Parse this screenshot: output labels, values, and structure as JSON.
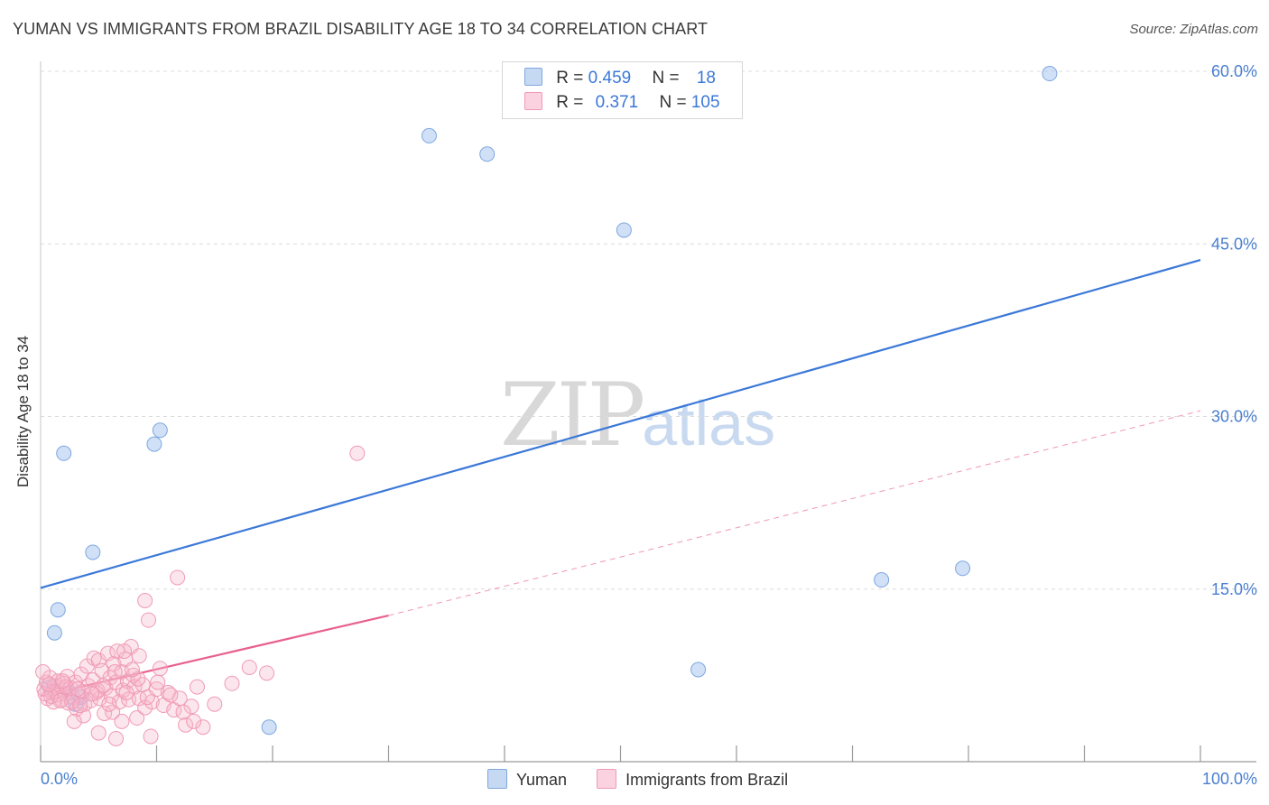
{
  "header": {
    "title": "YUMAN VS IMMIGRANTS FROM BRAZIL DISABILITY AGE 18 TO 34 CORRELATION CHART",
    "source": "Source: ZipAtlas.com"
  },
  "watermark": {
    "zip": "ZIP",
    "atlas": "atlas"
  },
  "legend": {
    "rows": [
      {
        "r_label": "R = ",
        "r_value": "0.459",
        "n_label": "N = ",
        "n_value": "18",
        "color": "#a9c6ef"
      },
      {
        "r_label": "R = ",
        "r_value": "0.371",
        "n_label": "N = ",
        "n_value": "105",
        "color": "#f6b7cb"
      }
    ]
  },
  "bottom_legend": {
    "yuman": "Yuman",
    "brazil": "Immigrants from Brazil"
  },
  "chart_data": {
    "type": "scatter",
    "title": "YUMAN VS IMMIGRANTS FROM BRAZIL DISABILITY AGE 18 TO 34 CORRELATION CHART",
    "xlabel": "",
    "ylabel": "Disability Age 18 to 34",
    "xlim": [
      0,
      100
    ],
    "ylim": [
      0,
      60
    ],
    "x_tick_labels": [
      "0.0%",
      "100.0%"
    ],
    "y_ticks": [
      15,
      30,
      45,
      60
    ],
    "y_tick_labels": [
      "15.0%",
      "30.0%",
      "45.0%",
      "60.0%"
    ],
    "grid": true,
    "series": [
      {
        "name": "Yuman",
        "color": "#3b78d8",
        "fill": "#a9c6ef",
        "points": [
          [
            2.0,
            26.8
          ],
          [
            1.2,
            11.2
          ],
          [
            1.5,
            13.2
          ],
          [
            4.5,
            18.2
          ],
          [
            9.8,
            27.6
          ],
          [
            10.3,
            28.8
          ],
          [
            33.5,
            54.4
          ],
          [
            38.5,
            52.8
          ],
          [
            50.3,
            46.2
          ],
          [
            87.0,
            59.8
          ],
          [
            72.5,
            15.8
          ],
          [
            79.5,
            16.8
          ],
          [
            56.7,
            8.0
          ],
          [
            19.7,
            3.0
          ],
          [
            3.0,
            5.0
          ],
          [
            3.5,
            5.6
          ],
          [
            2.5,
            6.0
          ],
          [
            0.8,
            6.5
          ]
        ],
        "trend": {
          "x": [
            0,
            100
          ],
          "y": [
            15.1,
            43.6
          ],
          "style": "solid"
        }
      },
      {
        "name": "Immigrants from Brazil",
        "color": "#e8608f",
        "fill": "#f6b7cb",
        "points": [
          [
            0.3,
            6.3
          ],
          [
            0.5,
            6.9
          ],
          [
            0.6,
            5.5
          ],
          [
            0.8,
            7.3
          ],
          [
            1.0,
            6.0
          ],
          [
            1.1,
            5.2
          ],
          [
            1.2,
            6.6
          ],
          [
            1.4,
            5.8
          ],
          [
            1.5,
            7.0
          ],
          [
            1.6,
            6.2
          ],
          [
            1.8,
            5.4
          ],
          [
            2.0,
            6.8
          ],
          [
            2.1,
            5.9
          ],
          [
            2.3,
            7.4
          ],
          [
            2.4,
            5.1
          ],
          [
            2.6,
            6.4
          ],
          [
            2.8,
            5.6
          ],
          [
            3.0,
            6.9
          ],
          [
            3.1,
            4.6
          ],
          [
            3.3,
            5.8
          ],
          [
            3.5,
            7.6
          ],
          [
            3.6,
            6.1
          ],
          [
            3.8,
            5.0
          ],
          [
            4.0,
            8.3
          ],
          [
            4.1,
            6.6
          ],
          [
            4.3,
            5.3
          ],
          [
            4.5,
            7.1
          ],
          [
            4.6,
            9.0
          ],
          [
            4.8,
            6.0
          ],
          [
            5.0,
            8.8
          ],
          [
            5.1,
            5.5
          ],
          [
            5.3,
            7.9
          ],
          [
            5.5,
            4.2
          ],
          [
            5.6,
            6.4
          ],
          [
            5.8,
            9.4
          ],
          [
            6.0,
            7.3
          ],
          [
            6.1,
            5.7
          ],
          [
            6.3,
            8.5
          ],
          [
            6.5,
            6.9
          ],
          [
            6.6,
            9.6
          ],
          [
            6.8,
            5.2
          ],
          [
            7.0,
            7.8
          ],
          [
            7.1,
            6.2
          ],
          [
            7.3,
            8.9
          ],
          [
            7.5,
            7.0
          ],
          [
            7.6,
            5.4
          ],
          [
            7.8,
            10.0
          ],
          [
            8.0,
            7.5
          ],
          [
            8.1,
            6.5
          ],
          [
            8.3,
            3.8
          ],
          [
            8.5,
            5.5
          ],
          [
            8.8,
            6.7
          ],
          [
            9.0,
            4.7
          ],
          [
            9.3,
            12.3
          ],
          [
            9.6,
            5.2
          ],
          [
            10.0,
            6.3
          ],
          [
            10.3,
            8.1
          ],
          [
            10.6,
            4.9
          ],
          [
            11.0,
            6.0
          ],
          [
            11.5,
            4.5
          ],
          [
            12.0,
            5.5
          ],
          [
            12.5,
            3.2
          ],
          [
            13.0,
            4.8
          ],
          [
            13.5,
            6.5
          ],
          [
            14.0,
            3.0
          ],
          [
            15.0,
            5.0
          ],
          [
            16.5,
            6.8
          ],
          [
            18.0,
            8.2
          ],
          [
            19.5,
            7.7
          ],
          [
            27.3,
            26.8
          ],
          [
            9.0,
            14.0
          ],
          [
            11.8,
            16.0
          ],
          [
            5.0,
            2.5
          ],
          [
            6.5,
            2.0
          ],
          [
            9.5,
            2.2
          ],
          [
            7.0,
            3.5
          ],
          [
            8.5,
            9.2
          ],
          [
            7.2,
            9.6
          ],
          [
            3.7,
            4.0
          ],
          [
            2.9,
            3.5
          ],
          [
            6.2,
            4.3
          ],
          [
            4.9,
            6.2
          ],
          [
            1.3,
            6.1
          ],
          [
            0.9,
            5.7
          ],
          [
            2.2,
            6.5
          ],
          [
            1.7,
            5.3
          ],
          [
            3.2,
            6.3
          ],
          [
            0.4,
            5.9
          ],
          [
            0.7,
            6.7
          ],
          [
            2.7,
            5.2
          ],
          [
            4.4,
            5.9
          ],
          [
            5.4,
            6.6
          ],
          [
            6.4,
            7.8
          ],
          [
            7.4,
            6.0
          ],
          [
            8.4,
            7.2
          ],
          [
            9.2,
            5.6
          ],
          [
            10.1,
            6.9
          ],
          [
            11.2,
            5.8
          ],
          [
            12.3,
            4.3
          ],
          [
            13.2,
            3.5
          ],
          [
            3.4,
            4.9
          ],
          [
            1.9,
            7.0
          ],
          [
            5.9,
            5.0
          ],
          [
            7.9,
            8.0
          ],
          [
            0.2,
            7.8
          ]
        ],
        "trend": {
          "x": [
            0,
            30
          ],
          "y": [
            5.7,
            12.7
          ],
          "style": "solid"
        },
        "trend_extension": {
          "x": [
            30,
            100
          ],
          "y": [
            12.7,
            30.5
          ],
          "style": "dashed"
        }
      }
    ]
  }
}
